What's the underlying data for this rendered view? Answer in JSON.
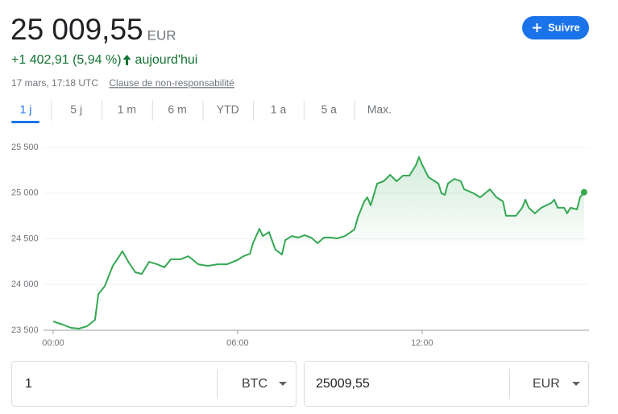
{
  "header": {
    "price": "25 009,55",
    "currency": "EUR",
    "change": "+1 402,91 (5,94 %)",
    "period": "aujourd'hui",
    "timestamp": "17 mars, 17:18 UTC",
    "disclaimer": "Clause de non-responsabilité",
    "follow_button": "Suivre"
  },
  "tabs": [
    "1 j",
    "5 j",
    "1 m",
    "6 m",
    "YTD",
    "1 a",
    "5 a",
    "Max."
  ],
  "active_tab": 0,
  "chart_data": {
    "type": "line",
    "color": "#34a853",
    "grid": true,
    "x": [
      0,
      0.31,
      0.58,
      0.84,
      1.1,
      1.36,
      1.47,
      1.68,
      1.94,
      2.15,
      2.25,
      2.46,
      2.67,
      2.88,
      3.12,
      3.38,
      3.62,
      3.83,
      4.14,
      4.4,
      4.72,
      5.03,
      5.35,
      5.66,
      5.98,
      6.19,
      6.4,
      6.5,
      6.71,
      6.82,
      7.02,
      7.23,
      7.44,
      7.55,
      7.76,
      7.97,
      8.18,
      8.39,
      8.6,
      8.81,
      9.02,
      9.23,
      9.49,
      9.8,
      9.91,
      10.12,
      10.22,
      10.33,
      10.54,
      10.75,
      10.96,
      11.17,
      11.38,
      11.59,
      11.8,
      11.9,
      12.01,
      12.21,
      12.53,
      12.63,
      12.74,
      12.84,
      13.05,
      13.26,
      13.37,
      13.68,
      13.89,
      14.21,
      14.42,
      14.63,
      14.73,
      15.05,
      15.26,
      15.36,
      15.47,
      15.67,
      15.88,
      16.2,
      16.3,
      16.41,
      16.62,
      16.72,
      16.83,
      17.04,
      17.14,
      17.27
    ],
    "values": [
      23596,
      23562,
      23526,
      23518,
      23544,
      23614,
      23896,
      23984,
      24204,
      24310,
      24364,
      24240,
      24134,
      24116,
      24248,
      24222,
      24188,
      24276,
      24276,
      24310,
      24222,
      24204,
      24222,
      24222,
      24266,
      24310,
      24336,
      24452,
      24610,
      24530,
      24574,
      24382,
      24328,
      24486,
      24530,
      24514,
      24540,
      24514,
      24452,
      24514,
      24514,
      24504,
      24530,
      24602,
      24734,
      24910,
      24954,
      24866,
      25104,
      25130,
      25200,
      25130,
      25192,
      25192,
      25306,
      25394,
      25306,
      25174,
      25104,
      24998,
      24980,
      25104,
      25156,
      25130,
      25042,
      24998,
      24954,
      25042,
      24954,
      24910,
      24752,
      24752,
      24840,
      24928,
      24840,
      24778,
      24840,
      24892,
      24928,
      24840,
      24840,
      24778,
      24840,
      24822,
      24954,
      25009.55
    ],
    "xlim": [
      0,
      17.43
    ],
    "ylim": [
      23500,
      25500
    ],
    "xticks": [
      {
        "value": 0,
        "label": "00:00"
      },
      {
        "value": 6,
        "label": "06:00"
      },
      {
        "value": 12,
        "label": "12:00"
      }
    ],
    "yticks": [
      {
        "value": 23500,
        "label": "23 500"
      },
      {
        "value": 24000,
        "label": "24 000"
      },
      {
        "value": 24500,
        "label": "24 500"
      },
      {
        "value": 25000,
        "label": "25 000"
      },
      {
        "value": 25500,
        "label": "25 500"
      }
    ]
  },
  "converter": {
    "from_amount": "1",
    "from_unit": "BTC",
    "to_amount": "25009,55",
    "to_unit": "EUR"
  }
}
